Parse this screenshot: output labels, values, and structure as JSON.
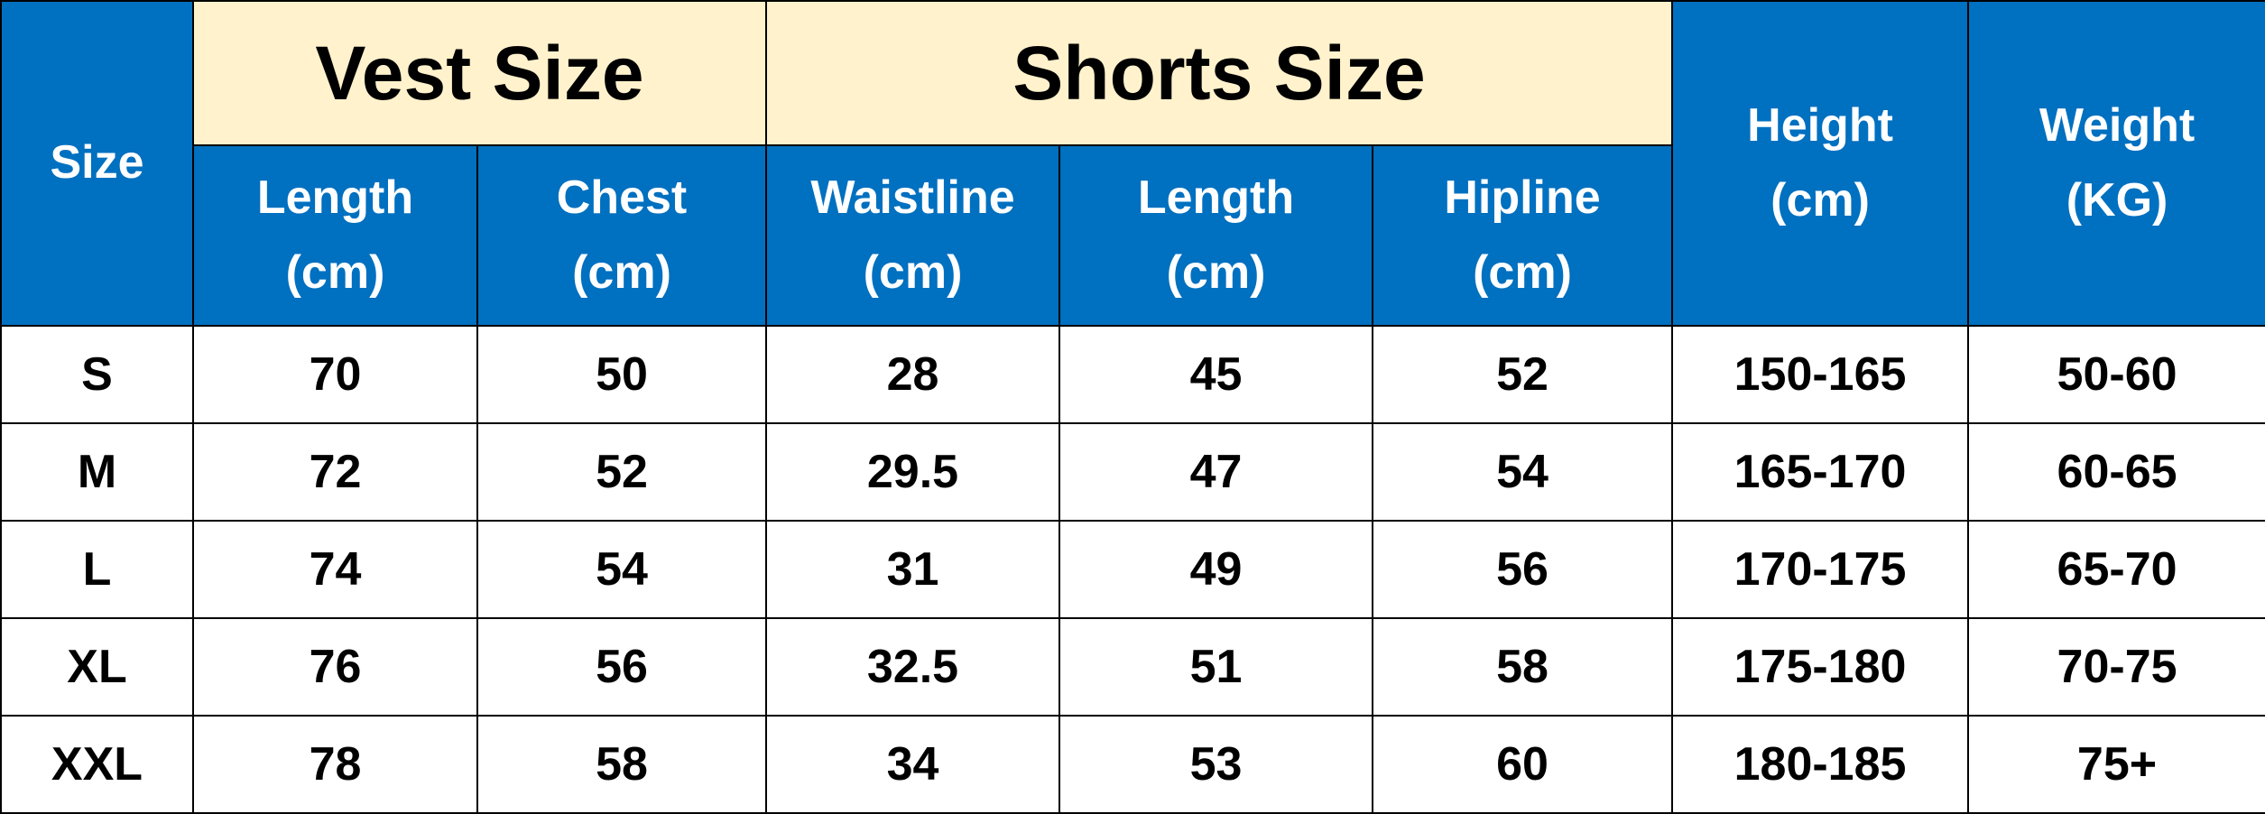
{
  "colors": {
    "header_blue": "#0070C0",
    "group_yellow": "#FFF2CC"
  },
  "header": {
    "size": "Size",
    "vest_group": "Vest Size",
    "shorts_group": "Shorts Size",
    "height": [
      "Height",
      "(cm)"
    ],
    "weight": [
      "Weight",
      "(KG)"
    ],
    "sub": [
      [
        "Length",
        "(cm)"
      ],
      [
        "Chest",
        "(cm)"
      ],
      [
        "Waistline",
        "(cm)"
      ],
      [
        "Length",
        "(cm)"
      ],
      [
        "Hipline",
        "(cm)"
      ]
    ]
  },
  "rows": [
    [
      "S",
      "70",
      "50",
      "28",
      "45",
      "52",
      "150-165",
      "50-60"
    ],
    [
      "M",
      "72",
      "52",
      "29.5",
      "47",
      "54",
      "165-170",
      "60-65"
    ],
    [
      "L",
      "74",
      "54",
      "31",
      "49",
      "56",
      "170-175",
      "65-70"
    ],
    [
      "XL",
      "76",
      "56",
      "32.5",
      "51",
      "58",
      "175-180",
      "70-75"
    ],
    [
      "XXL",
      "78",
      "58",
      "34",
      "53",
      "60",
      "180-185",
      "75+"
    ]
  ]
}
